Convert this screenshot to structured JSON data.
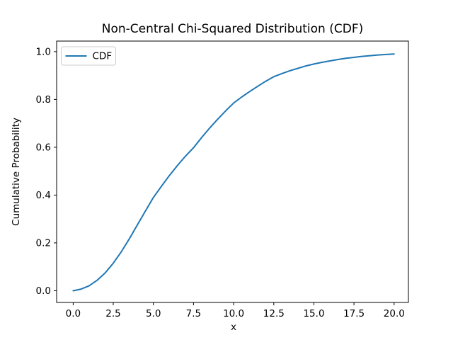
{
  "figure": {
    "background": "#ffffff",
    "text_color": "#000000",
    "spine_color": "#000000",
    "legend_border_color": "#cccccc"
  },
  "chart_data": {
    "type": "line",
    "title": "Non-Central Chi-Squared Distribution (CDF)",
    "xlabel": "x",
    "ylabel": "Cumulative Probability",
    "grid": false,
    "legend": {
      "position": "upper left",
      "entries": [
        {
          "label": "CDF",
          "color": "#1f77b4"
        }
      ]
    },
    "xlim": [
      -1.03,
      20.89
    ],
    "ylim": [
      -0.049,
      1.044
    ],
    "x_ticks": [
      0,
      2.5,
      5,
      7.5,
      10,
      12.5,
      15,
      17.5,
      20
    ],
    "x_tick_labels": [
      "0.0",
      "2.5",
      "5.0",
      "7.5",
      "10.0",
      "12.5",
      "15.0",
      "17.5",
      "20.0"
    ],
    "y_ticks": [
      0,
      0.2,
      0.4,
      0.6,
      0.8,
      1.0
    ],
    "y_tick_labels": [
      "0.0",
      "0.2",
      "0.4",
      "0.6",
      "0.8",
      "1.0"
    ],
    "series": [
      {
        "name": "CDF",
        "color": "#1f77b4",
        "line_width": 2,
        "x": [
          0,
          0.5,
          1.0,
          1.5,
          2.0,
          2.5,
          3.0,
          3.5,
          4.0,
          4.5,
          5.0,
          5.5,
          6.0,
          6.5,
          7.0,
          7.5,
          8.0,
          8.5,
          9.0,
          9.5,
          10.0,
          10.5,
          11.0,
          11.5,
          12.0,
          12.5,
          13.0,
          13.5,
          14.0,
          14.5,
          15.0,
          15.5,
          16.0,
          16.5,
          17.0,
          17.5,
          18.0,
          18.5,
          19.0,
          19.5,
          20.0
        ],
        "y": [
          0.0,
          0.007,
          0.021,
          0.044,
          0.075,
          0.115,
          0.163,
          0.217,
          0.275,
          0.333,
          0.39,
          0.437,
          0.482,
          0.524,
          0.563,
          0.598,
          0.64,
          0.68,
          0.717,
          0.752,
          0.785,
          0.81,
          0.833,
          0.855,
          0.876,
          0.895,
          0.908,
          0.92,
          0.93,
          0.94,
          0.948,
          0.955,
          0.961,
          0.967,
          0.972,
          0.976,
          0.98,
          0.983,
          0.986,
          0.988,
          0.99
        ]
      }
    ]
  }
}
